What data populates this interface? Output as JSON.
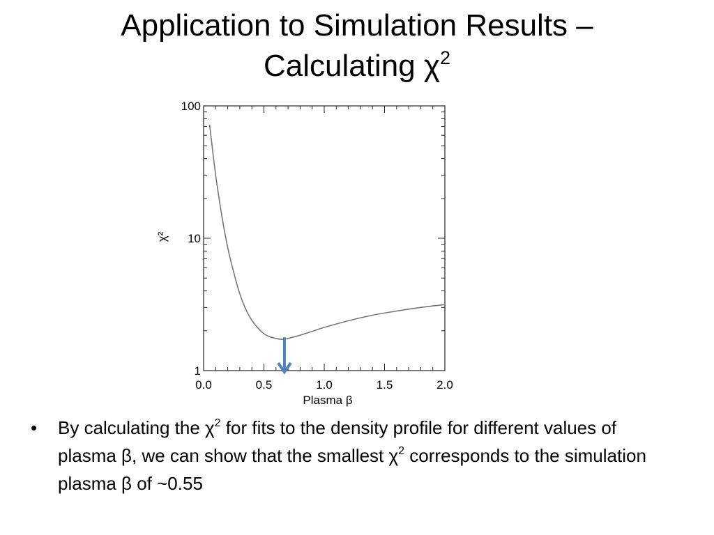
{
  "slide": {
    "title_line1": "Application to Simulation Results –",
    "title_line2": "Calculating χ",
    "title_sup": "2",
    "bullet": {
      "marker": "•",
      "part1": "By calculating the χ",
      "sup1": "2",
      "part2": " for fits to the density profile for different values of plasma β, we can show that the smallest χ",
      "sup2": "2",
      "part3": " corresponds to the simulation plasma β of ~0.55"
    }
  },
  "chart_data": {
    "type": "line",
    "title": "",
    "xlabel": "Plasma β",
    "ylabel": "χ²",
    "xlim": [
      0.0,
      2.0
    ],
    "ylim": [
      1,
      100
    ],
    "yscale": "log",
    "xticks": [
      "0.0",
      "0.5",
      "1.0",
      "1.5",
      "2.0"
    ],
    "yticks": [
      "1",
      "10",
      "100"
    ],
    "grid": false,
    "series": [
      {
        "color": "#777777",
        "x": [
          0.05,
          0.1,
          0.15,
          0.2,
          0.25,
          0.3,
          0.35,
          0.4,
          0.45,
          0.5,
          0.55,
          0.6,
          0.65,
          0.7,
          0.8,
          0.9,
          1.0,
          1.2,
          1.4,
          1.6,
          1.8,
          2.0
        ],
        "y": [
          72,
          30,
          15,
          8.5,
          5.5,
          3.8,
          2.9,
          2.4,
          2.1,
          1.9,
          1.8,
          1.75,
          1.72,
          1.75,
          1.85,
          1.98,
          2.12,
          2.38,
          2.62,
          2.82,
          3.0,
          3.15
        ]
      }
    ],
    "annotation": {
      "type": "arrow",
      "x": 0.67,
      "y_from": 1.78,
      "y_to": 1.0,
      "color": "#4f81bd"
    }
  }
}
